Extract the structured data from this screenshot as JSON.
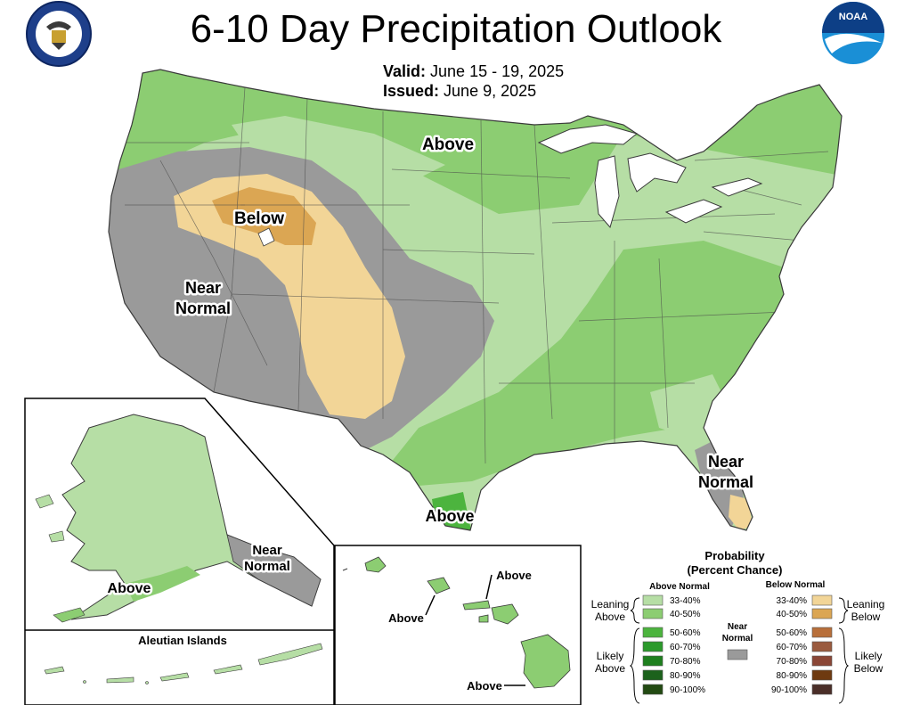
{
  "header": {
    "title": "6-10 Day Precipitation Outlook",
    "valid_label": "Valid:",
    "valid_value": "June 15 - 19, 2025",
    "issued_label": "Issued:",
    "issued_value": "June 9, 2025",
    "doc_seal_icon": "department-of-commerce-seal",
    "noaa_logo_icon": "noaa-logo",
    "noaa_text": "NOAA"
  },
  "map_labels": {
    "conus_north": "Above",
    "conus_below": "Below",
    "conus_near_1": "Near",
    "conus_near_2": "Normal",
    "florida_near_1": "Near",
    "florida_near_2": "Normal",
    "texas_above": "Above",
    "alaska_above": "Above",
    "alaska_near_1": "Near",
    "alaska_near_2": "Normal",
    "aleutian_title": "Aleutian Islands",
    "hawaii_above_1": "Above",
    "hawaii_above_2": "Above",
    "hawaii_above_3": "Above"
  },
  "legend": {
    "title_1": "Probability",
    "title_2": "(Percent Chance)",
    "above_header": "Above Normal",
    "below_header": "Below Normal",
    "near_1": "Near",
    "near_2": "Normal",
    "leaning_above_1": "Leaning",
    "leaning_above_2": "Above",
    "likely_above_1": "Likely",
    "likely_above_2": "Above",
    "leaning_below_1": "Leaning",
    "leaning_below_2": "Below",
    "likely_below_1": "Likely",
    "likely_below_2": "Below",
    "above_bins": [
      {
        "label": "33-40%",
        "color": "#b6dea5"
      },
      {
        "label": "40-50%",
        "color": "#8ccd72"
      },
      {
        "label": "50-60%",
        "color": "#4cb43e"
      },
      {
        "label": "60-70%",
        "color": "#2c9a2c"
      },
      {
        "label": "70-80%",
        "color": "#1e7f1e"
      },
      {
        "label": "80-90%",
        "color": "#1c621c"
      },
      {
        "label": "90-100%",
        "color": "#224a12"
      }
    ],
    "below_bins": [
      {
        "label": "33-40%",
        "color": "#f2d597"
      },
      {
        "label": "40-50%",
        "color": "#dba653"
      },
      {
        "label": "50-60%",
        "color": "#b86f3a"
      },
      {
        "label": "60-70%",
        "color": "#9a5a3e"
      },
      {
        "label": "70-80%",
        "color": "#8a4636"
      },
      {
        "label": "80-90%",
        "color": "#6e3a10"
      },
      {
        "label": "90-100%",
        "color": "#4a2e28"
      }
    ],
    "near_color": "#9a9a9a"
  }
}
